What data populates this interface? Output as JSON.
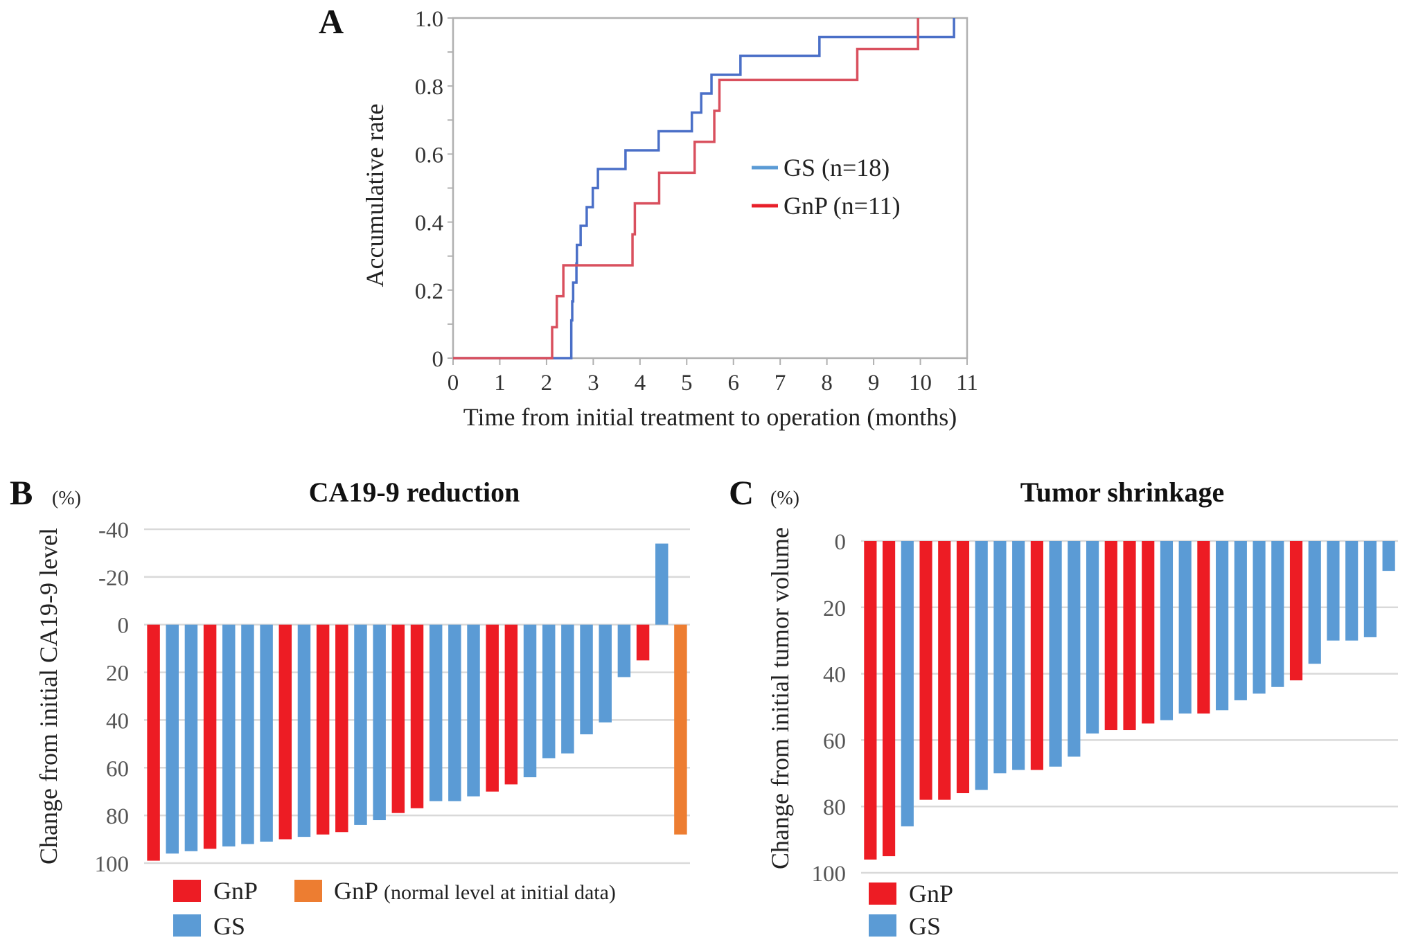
{
  "chart_data": [
    {
      "id": "A",
      "panel_label": "A",
      "type": "line",
      "subtype": "step (cumulative incidence)",
      "title": "",
      "xlabel": "Time from initial treatment to operation (months)",
      "ylabel": "Accumulative rate",
      "xlim": [
        0,
        11
      ],
      "ylim": [
        0,
        1.0
      ],
      "xticks": [
        "0",
        "1",
        "2",
        "3",
        "4",
        "5",
        "6",
        "7",
        "8",
        "9",
        "10",
        "11"
      ],
      "yticks": [
        "0",
        "0.2",
        "0.4",
        "0.6",
        "0.8",
        "1.0"
      ],
      "grid": false,
      "legend_position": "center-right",
      "series": [
        {
          "name": "GS (n=18)",
          "color": "#4a6fc7",
          "legend_color": "#5b9bd5",
          "steps": [
            [
              0,
              0
            ],
            [
              2.53,
              0.111
            ],
            [
              2.55,
              0.167
            ],
            [
              2.57,
              0.222
            ],
            [
              2.64,
              0.278
            ],
            [
              2.65,
              0.333
            ],
            [
              2.73,
              0.389
            ],
            [
              2.86,
              0.444
            ],
            [
              2.99,
              0.5
            ],
            [
              3.1,
              0.556
            ],
            [
              3.69,
              0.611
            ],
            [
              4.4,
              0.667
            ],
            [
              5.11,
              0.722
            ],
            [
              5.31,
              0.778
            ],
            [
              5.53,
              0.833
            ],
            [
              6.15,
              0.889
            ],
            [
              7.84,
              0.944
            ],
            [
              10.72,
              1.0
            ]
          ]
        },
        {
          "name": "GnP (n=11)",
          "color": "#d9505e",
          "legend_color": "#e8202a",
          "steps": [
            [
              0,
              0
            ],
            [
              2.12,
              0.091
            ],
            [
              2.22,
              0.182
            ],
            [
              2.36,
              0.273
            ],
            [
              3.84,
              0.364
            ],
            [
              3.89,
              0.455
            ],
            [
              4.41,
              0.545
            ],
            [
              5.17,
              0.636
            ],
            [
              5.59,
              0.727
            ],
            [
              5.7,
              0.818
            ],
            [
              8.65,
              0.909
            ],
            [
              9.95,
              1.0
            ]
          ]
        }
      ]
    },
    {
      "id": "B",
      "panel_label": "B",
      "type": "bar",
      "subtype": "waterfall",
      "title": "CA19-9 reduction",
      "unit_label": "(%)",
      "xlabel": "",
      "ylabel": "Change from initial CA19-9 level",
      "ylim": [
        -40,
        100
      ],
      "y_inverted": true,
      "yticks": [
        "-40",
        "-20",
        "0",
        "20",
        "40",
        "60",
        "80",
        "100"
      ],
      "grid": true,
      "legend_position": "bottom",
      "legend": [
        {
          "label": "GnP",
          "color": "#ed1c24"
        },
        {
          "label": "GnP",
          "label_suffix": "(normal level at initial data)",
          "color": "#ed7d31"
        },
        {
          "label": "GS",
          "color": "#5b9bd5"
        }
      ],
      "bars": [
        {
          "group": "GnP",
          "value": 99
        },
        {
          "group": "GS",
          "value": 96
        },
        {
          "group": "GS",
          "value": 95
        },
        {
          "group": "GnP",
          "value": 94
        },
        {
          "group": "GS",
          "value": 93
        },
        {
          "group": "GS",
          "value": 92
        },
        {
          "group": "GS",
          "value": 91
        },
        {
          "group": "GnP",
          "value": 90
        },
        {
          "group": "GS",
          "value": 89
        },
        {
          "group": "GnP",
          "value": 88
        },
        {
          "group": "GnP",
          "value": 87
        },
        {
          "group": "GS",
          "value": 84
        },
        {
          "group": "GS",
          "value": 82
        },
        {
          "group": "GnP",
          "value": 79
        },
        {
          "group": "GnP",
          "value": 77
        },
        {
          "group": "GS",
          "value": 74
        },
        {
          "group": "GS",
          "value": 74
        },
        {
          "group": "GS",
          "value": 72
        },
        {
          "group": "GnP",
          "value": 70
        },
        {
          "group": "GnP",
          "value": 67
        },
        {
          "group": "GS",
          "value": 64
        },
        {
          "group": "GS",
          "value": 56
        },
        {
          "group": "GS",
          "value": 54
        },
        {
          "group": "GS",
          "value": 46
        },
        {
          "group": "GS",
          "value": 41
        },
        {
          "group": "GS",
          "value": 22
        },
        {
          "group": "GnP",
          "value": 15
        },
        {
          "group": "GS",
          "value": -34
        },
        {
          "group": "GnP-normal",
          "value": 88
        }
      ]
    },
    {
      "id": "C",
      "panel_label": "C",
      "type": "bar",
      "subtype": "waterfall",
      "title": "Tumor shrinkage",
      "unit_label": "(%)",
      "xlabel": "",
      "ylabel": "Change from initial tumor volume",
      "ylim": [
        0,
        100
      ],
      "y_inverted": true,
      "yticks": [
        "0",
        "20",
        "40",
        "60",
        "80",
        "100"
      ],
      "grid": true,
      "legend_position": "bottom-left",
      "legend": [
        {
          "label": "GnP",
          "color": "#ed1c24"
        },
        {
          "label": "GS",
          "color": "#5b9bd5"
        }
      ],
      "bars": [
        {
          "group": "GnP",
          "value": 96
        },
        {
          "group": "GnP",
          "value": 95
        },
        {
          "group": "GS",
          "value": 86
        },
        {
          "group": "GnP",
          "value": 78
        },
        {
          "group": "GnP",
          "value": 78
        },
        {
          "group": "GnP",
          "value": 76
        },
        {
          "group": "GS",
          "value": 75
        },
        {
          "group": "GS",
          "value": 70
        },
        {
          "group": "GS",
          "value": 69
        },
        {
          "group": "GnP",
          "value": 69
        },
        {
          "group": "GS",
          "value": 68
        },
        {
          "group": "GS",
          "value": 65
        },
        {
          "group": "GS",
          "value": 58
        },
        {
          "group": "GnP",
          "value": 57
        },
        {
          "group": "GnP",
          "value": 57
        },
        {
          "group": "GnP",
          "value": 55
        },
        {
          "group": "GS",
          "value": 54
        },
        {
          "group": "GS",
          "value": 52
        },
        {
          "group": "GnP",
          "value": 52
        },
        {
          "group": "GS",
          "value": 51
        },
        {
          "group": "GS",
          "value": 48
        },
        {
          "group": "GS",
          "value": 46
        },
        {
          "group": "GS",
          "value": 44
        },
        {
          "group": "GnP",
          "value": 42
        },
        {
          "group": "GS",
          "value": 37
        },
        {
          "group": "GS",
          "value": 30
        },
        {
          "group": "GS",
          "value": 30
        },
        {
          "group": "GS",
          "value": 29
        },
        {
          "group": "GS",
          "value": 9
        }
      ]
    }
  ],
  "colors": {
    "GnP": "#ed1c24",
    "GS": "#5b9bd5",
    "GnP-normal": "#ed7d31",
    "axis": "#b0b0b0",
    "grid": "#d9d9d9"
  }
}
